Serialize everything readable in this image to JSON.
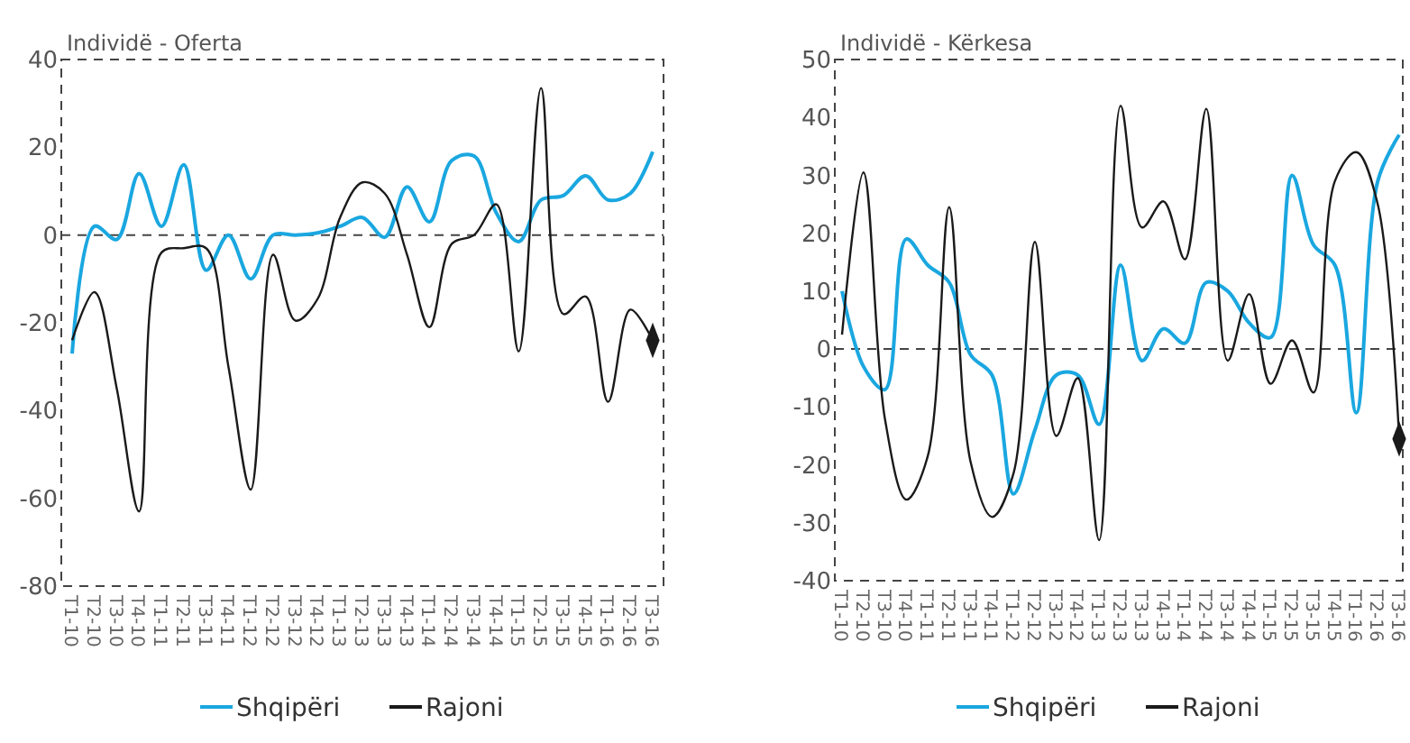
{
  "chart_data": [
    {
      "type": "line",
      "title": "Individë - Oferta",
      "categories": [
        "T1-10",
        "T2-10",
        "T3-10",
        "T4-10",
        "T1-11",
        "T2-11",
        "T3-11",
        "T4-11",
        "T1-12",
        "T2-12",
        "T3-12",
        "T4-12",
        "T1-13",
        "T2-13",
        "T3-13",
        "T4-13",
        "T1-14",
        "T2-14",
        "T3-14",
        "T4-14",
        "T1-15",
        "T2-15",
        "T3-15",
        "T4-15",
        "T1-16",
        "T2-16",
        "T3-16"
      ],
      "series": [
        {
          "name": "Shqipëri",
          "color": "#1aa7e0",
          "values": [
            -27,
            2,
            -1,
            14,
            2,
            16,
            -8,
            0,
            -10,
            0,
            0,
            0.5,
            2,
            4,
            -0.5,
            11,
            3,
            17,
            18,
            5,
            -1.5,
            8,
            9,
            13.5,
            8,
            9.5,
            19
          ]
        },
        {
          "name": "Rajoni",
          "color": "#1a1a1a",
          "values": [
            -24,
            -13,
            -35,
            -63,
            -4,
            -3,
            -3,
            -30,
            -58,
            -4.5,
            -19.5,
            -14.5,
            4,
            12,
            9.5,
            -4.5,
            -21,
            -2,
            0,
            7,
            -26.5,
            33.5,
            -18,
            -14,
            -38,
            -17,
            -24
          ]
        }
      ],
      "ylim": [
        -80,
        40
      ],
      "yticks": [
        -80,
        -60,
        -40,
        -20,
        0,
        20,
        40
      ],
      "ref_lines": [
        {
          "axis": "y",
          "value": 0
        }
      ],
      "grid": false,
      "legend": "bottom"
    },
    {
      "type": "line",
      "title": "Individë - Kërkesa",
      "categories": [
        "T1-10",
        "T2-10",
        "T3-10",
        "T4-10",
        "T1-11",
        "T2-11",
        "T3-11",
        "T4-11",
        "T1-12",
        "T2-12",
        "T3-12",
        "T4-12",
        "T1-13",
        "T2-13",
        "T3-13",
        "T4-13",
        "T1-14",
        "T2-14",
        "T3-14",
        "T4-14",
        "T1-15",
        "T2-15",
        "T3-15",
        "T4-15",
        "T1-16",
        "T2-16",
        "T3-16"
      ],
      "series": [
        {
          "name": "Shqipëri",
          "color": "#1aa7e0",
          "values": [
            10,
            -3,
            -7,
            19,
            14.5,
            11.5,
            -1,
            -4.5,
            -25,
            -14,
            -4.5,
            -4.5,
            -13,
            14.5,
            -2,
            3.5,
            1,
            11.5,
            10,
            4.5,
            2,
            30,
            18,
            14.5,
            -11,
            29,
            37
          ]
        },
        {
          "name": "Rajoni",
          "color": "#1a1a1a",
          "values": [
            2.5,
            30.5,
            -12,
            -26,
            -18.5,
            24.5,
            -19.5,
            -29,
            -21.5,
            18.5,
            -15,
            -5,
            -33,
            42,
            21,
            25.5,
            15.5,
            41.5,
            -2,
            9.5,
            -6,
            1.5,
            -7.5,
            29,
            34,
            25,
            -15.5
          ]
        }
      ],
      "ylim": [
        -40,
        50
      ],
      "yticks": [
        -40,
        -30,
        -20,
        -10,
        0,
        10,
        20,
        30,
        40,
        50
      ],
      "ref_lines": [
        {
          "axis": "y",
          "value": 0
        }
      ],
      "grid": false,
      "legend": "bottom"
    }
  ]
}
